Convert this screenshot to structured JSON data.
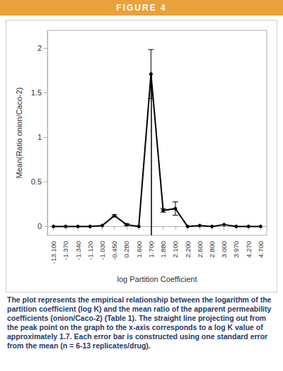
{
  "header": "FIGURE 4",
  "chart_data": {
    "type": "line",
    "x_label": "log Partition Coefficient",
    "y_label": "Mean(Ratio onion/Caco-2)",
    "categories": [
      "-13.100",
      "-1.370",
      "-1.340",
      "-1.120",
      "-1.030",
      "-0.450",
      "0.280",
      "1.600",
      "1.700",
      "1.880",
      "2.100",
      "2.200",
      "2.600",
      "2.800",
      "3.000",
      "3.970",
      "4.270",
      "4.700"
    ],
    "series": [
      {
        "name": "Mean(Ratio onion/Caco-2)",
        "color": "#000000",
        "marker": "circle",
        "values": [
          0,
          0,
          0,
          0,
          0.01,
          0.12,
          0.02,
          0,
          1.71,
          0.18,
          0.2,
          0,
          0.01,
          0,
          0.02,
          0,
          0,
          0
        ],
        "errors": [
          0,
          0,
          0,
          0,
          0,
          0.01,
          0.01,
          0,
          0.275,
          0.02,
          0.075,
          0,
          0,
          0,
          0,
          0,
          0,
          0
        ]
      }
    ],
    "reference_line": {
      "x": "1.700"
    },
    "ylim": [
      -0.1,
      2.2
    ],
    "yticks": [
      0,
      0.5,
      1,
      1.5,
      2
    ],
    "grid": false
  },
  "caption": "The plot represents the empirical relationship between the logarithm of the partition coefficient (log K) and the mean ratio of the apparent permeability coefficients (onion/Caco-2) (Table 1). The straight line projecting out from the peak point on the graph to the x-axis corresponds to a log K value of approximately 1.7. Each error bar is constructed using one standard error from the mean (n = 6-13 replicates/drug)."
}
